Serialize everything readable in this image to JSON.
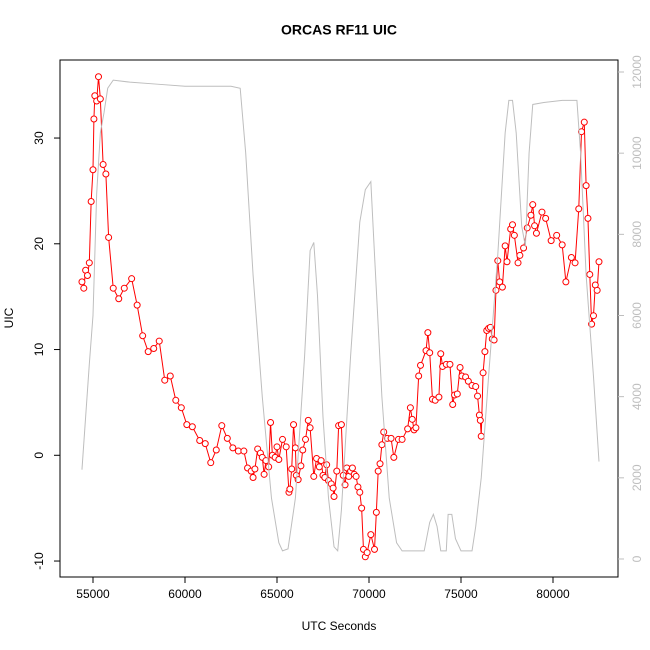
{
  "chart_data": {
    "type": "line",
    "title": "ORCAS RF11 UIC",
    "x_label": "UTC Seconds",
    "y_label": "UIC",
    "xlim": [
      53207,
      83533
    ],
    "xticks": [
      55000,
      60000,
      65000,
      70000,
      75000,
      80000
    ],
    "ylim": [
      -11.51,
      37.38
    ],
    "yticks": [
      -10,
      0,
      10,
      20,
      30
    ],
    "y2lim": [
      -444,
      12296
    ],
    "y2ticks": [
      0,
      2000,
      4000,
      6000,
      8000,
      10000,
      12000
    ],
    "y2_color": "#bebebe",
    "series": [
      {
        "color": "#ff0000",
        "markers": true,
        "x": [
          54400,
          54500,
          54600,
          54700,
          54800,
          54900,
          55000,
          55050,
          55100,
          55200,
          55300,
          55400,
          55550,
          55700,
          55850,
          56100,
          56400,
          56700,
          57100,
          57400,
          57700,
          58000,
          58300,
          58600,
          58900,
          59200,
          59500,
          59800,
          60100,
          60400,
          60800,
          61100,
          61400,
          61700,
          62000,
          62300,
          62600,
          62900,
          63200,
          63400,
          63600,
          63700,
          63800,
          63950,
          64100,
          64200,
          64300,
          64400,
          64550,
          64650,
          64750,
          64900,
          65000,
          65100,
          65300,
          65500,
          65650,
          65700,
          65800,
          65900,
          66000,
          66050,
          66150,
          66300,
          66400,
          66550,
          66700,
          66800,
          67000,
          67150,
          67300,
          67400,
          67500,
          67600,
          67700,
          67800,
          67950,
          68050,
          68100,
          68250,
          68350,
          68500,
          68600,
          68700,
          68800,
          68900,
          69000,
          69100,
          69200,
          69300,
          69400,
          69500,
          69600,
          69700,
          69800,
          69900,
          70100,
          70300,
          70400,
          70500,
          70600,
          70700,
          70800,
          71000,
          71200,
          71350,
          71600,
          71800,
          72100,
          72250,
          72350,
          72450,
          72550,
          72700,
          72800,
          73100,
          73200,
          73300,
          73450,
          73600,
          73800,
          73900,
          74000,
          74200,
          74400,
          74550,
          74650,
          74800,
          74950,
          75050,
          75250,
          75400,
          75600,
          75800,
          75900,
          76000,
          76050,
          76100,
          76200,
          76300,
          76400,
          76500,
          76600,
          76700,
          76800,
          76900,
          77000,
          77100,
          77250,
          77400,
          77500,
          77700,
          77800,
          77900,
          78100,
          78200,
          78400,
          78600,
          78800,
          78900,
          79000,
          79100,
          79400,
          79600,
          79900,
          80200,
          80500,
          80700,
          81000,
          81200,
          81400,
          81550,
          81700,
          81800,
          81900,
          82000,
          82100,
          82200,
          82300,
          82400,
          82500
        ],
        "values": [
          16.4,
          15.8,
          17.5,
          17,
          18.2,
          24,
          27,
          31.8,
          34,
          33.5,
          35.8,
          33.7,
          27.5,
          26.6,
          20.6,
          15.8,
          14.8,
          15.8,
          16.7,
          14.2,
          11.3,
          9.8,
          10.1,
          10.8,
          7.1,
          7.5,
          5.2,
          4.5,
          2.9,
          2.7,
          1.4,
          1.1,
          -0.7,
          0.5,
          2.8,
          1.6,
          0.7,
          0.4,
          0.4,
          -1.2,
          -1.5,
          -2.1,
          -1.3,
          0.6,
          0.2,
          -0.2,
          -1.8,
          -0.5,
          -1.1,
          3.1,
          0,
          -0.2,
          0.8,
          -0.4,
          1.5,
          0.8,
          -3.5,
          -3.2,
          -1.3,
          2.9,
          0.7,
          -1.9,
          -2.3,
          -1,
          0.5,
          1.5,
          3.3,
          2.6,
          -2,
          -0.3,
          -1.1,
          -0.5,
          -1.9,
          -2.1,
          -0.9,
          -2.4,
          -2.7,
          -3.1,
          -3.9,
          -1.5,
          2.8,
          2.9,
          -1.9,
          -2.8,
          -1.2,
          -2,
          -1.5,
          -1.2,
          -1.8,
          -2,
          -3,
          -3.5,
          -5,
          -8.9,
          -9.6,
          -9.2,
          -7.5,
          -8.9,
          -5.4,
          -1.5,
          -0.8,
          1,
          2.2,
          1.6,
          1.6,
          -0.2,
          1.5,
          1.5,
          2.5,
          4.5,
          3.4,
          2.4,
          2.6,
          7.5,
          8.5,
          9.9,
          11.6,
          9.7,
          5.3,
          5.2,
          5.5,
          9.6,
          8.4,
          8.6,
          8.6,
          4.8,
          5.7,
          5.8,
          8.3,
          7.5,
          7.4,
          7,
          6.6,
          6.5,
          5.6,
          3.8,
          3.3,
          1.8,
          7.8,
          9.8,
          11.8,
          12,
          12.1,
          11,
          10.9,
          15.6,
          18.4,
          16.4,
          15.9,
          19.8,
          18.3,
          21.4,
          21.8,
          20.8,
          18.2,
          18.9,
          19.6,
          21.5,
          22.7,
          23.7,
          21.7,
          21,
          23,
          22.4,
          20.3,
          20.8,
          19.9,
          16.4,
          18.7,
          18.2,
          23.3,
          30.6,
          31.5,
          25.5,
          22.4,
          17.1,
          12.4,
          13.2,
          16.1,
          15.6,
          18.3
        ]
      },
      {
        "color": "#bebebe",
        "axis": "y2",
        "markers": false,
        "x": [
          54400,
          54600,
          54800,
          55000,
          55200,
          55400,
          55600,
          55800,
          56100,
          57000,
          58500,
          60000,
          61500,
          62500,
          63000,
          63300,
          63700,
          64200,
          64700,
          65100,
          65300,
          65600,
          66000,
          66500,
          66800,
          67000,
          67200,
          67500,
          67800,
          68100,
          68300,
          68500,
          69000,
          69500,
          69800,
          70100,
          70300,
          70700,
          71100,
          71500,
          71800,
          72500,
          73000,
          73300,
          73500,
          73700,
          73900,
          74200,
          74300,
          74500,
          74700,
          75000,
          75600,
          75800,
          76100,
          76500,
          77000,
          77400,
          77600,
          77800,
          78000,
          78300,
          78500,
          78700,
          78900,
          79500,
          80500,
          81300,
          81500,
          81800,
          82200,
          82500
        ],
        "values": [
          2200,
          3500,
          4800,
          6000,
          9000,
          10500,
          11000,
          11600,
          11800,
          11750,
          11700,
          11650,
          11650,
          11650,
          11600,
          10000,
          7000,
          4000,
          1500,
          400,
          200,
          250,
          1500,
          5000,
          7600,
          7800,
          6500,
          3500,
          1500,
          300,
          200,
          1200,
          5000,
          8300,
          9100,
          9300,
          7500,
          4000,
          1500,
          400,
          200,
          200,
          200,
          900,
          1100,
          800,
          200,
          200,
          1100,
          1100,
          500,
          200,
          200,
          800,
          2000,
          4500,
          7500,
          10500,
          11300,
          11300,
          10500,
          8200,
          7700,
          10000,
          11200,
          11250,
          11300,
          11300,
          10000,
          7000,
          4500,
          2400
        ]
      }
    ]
  }
}
